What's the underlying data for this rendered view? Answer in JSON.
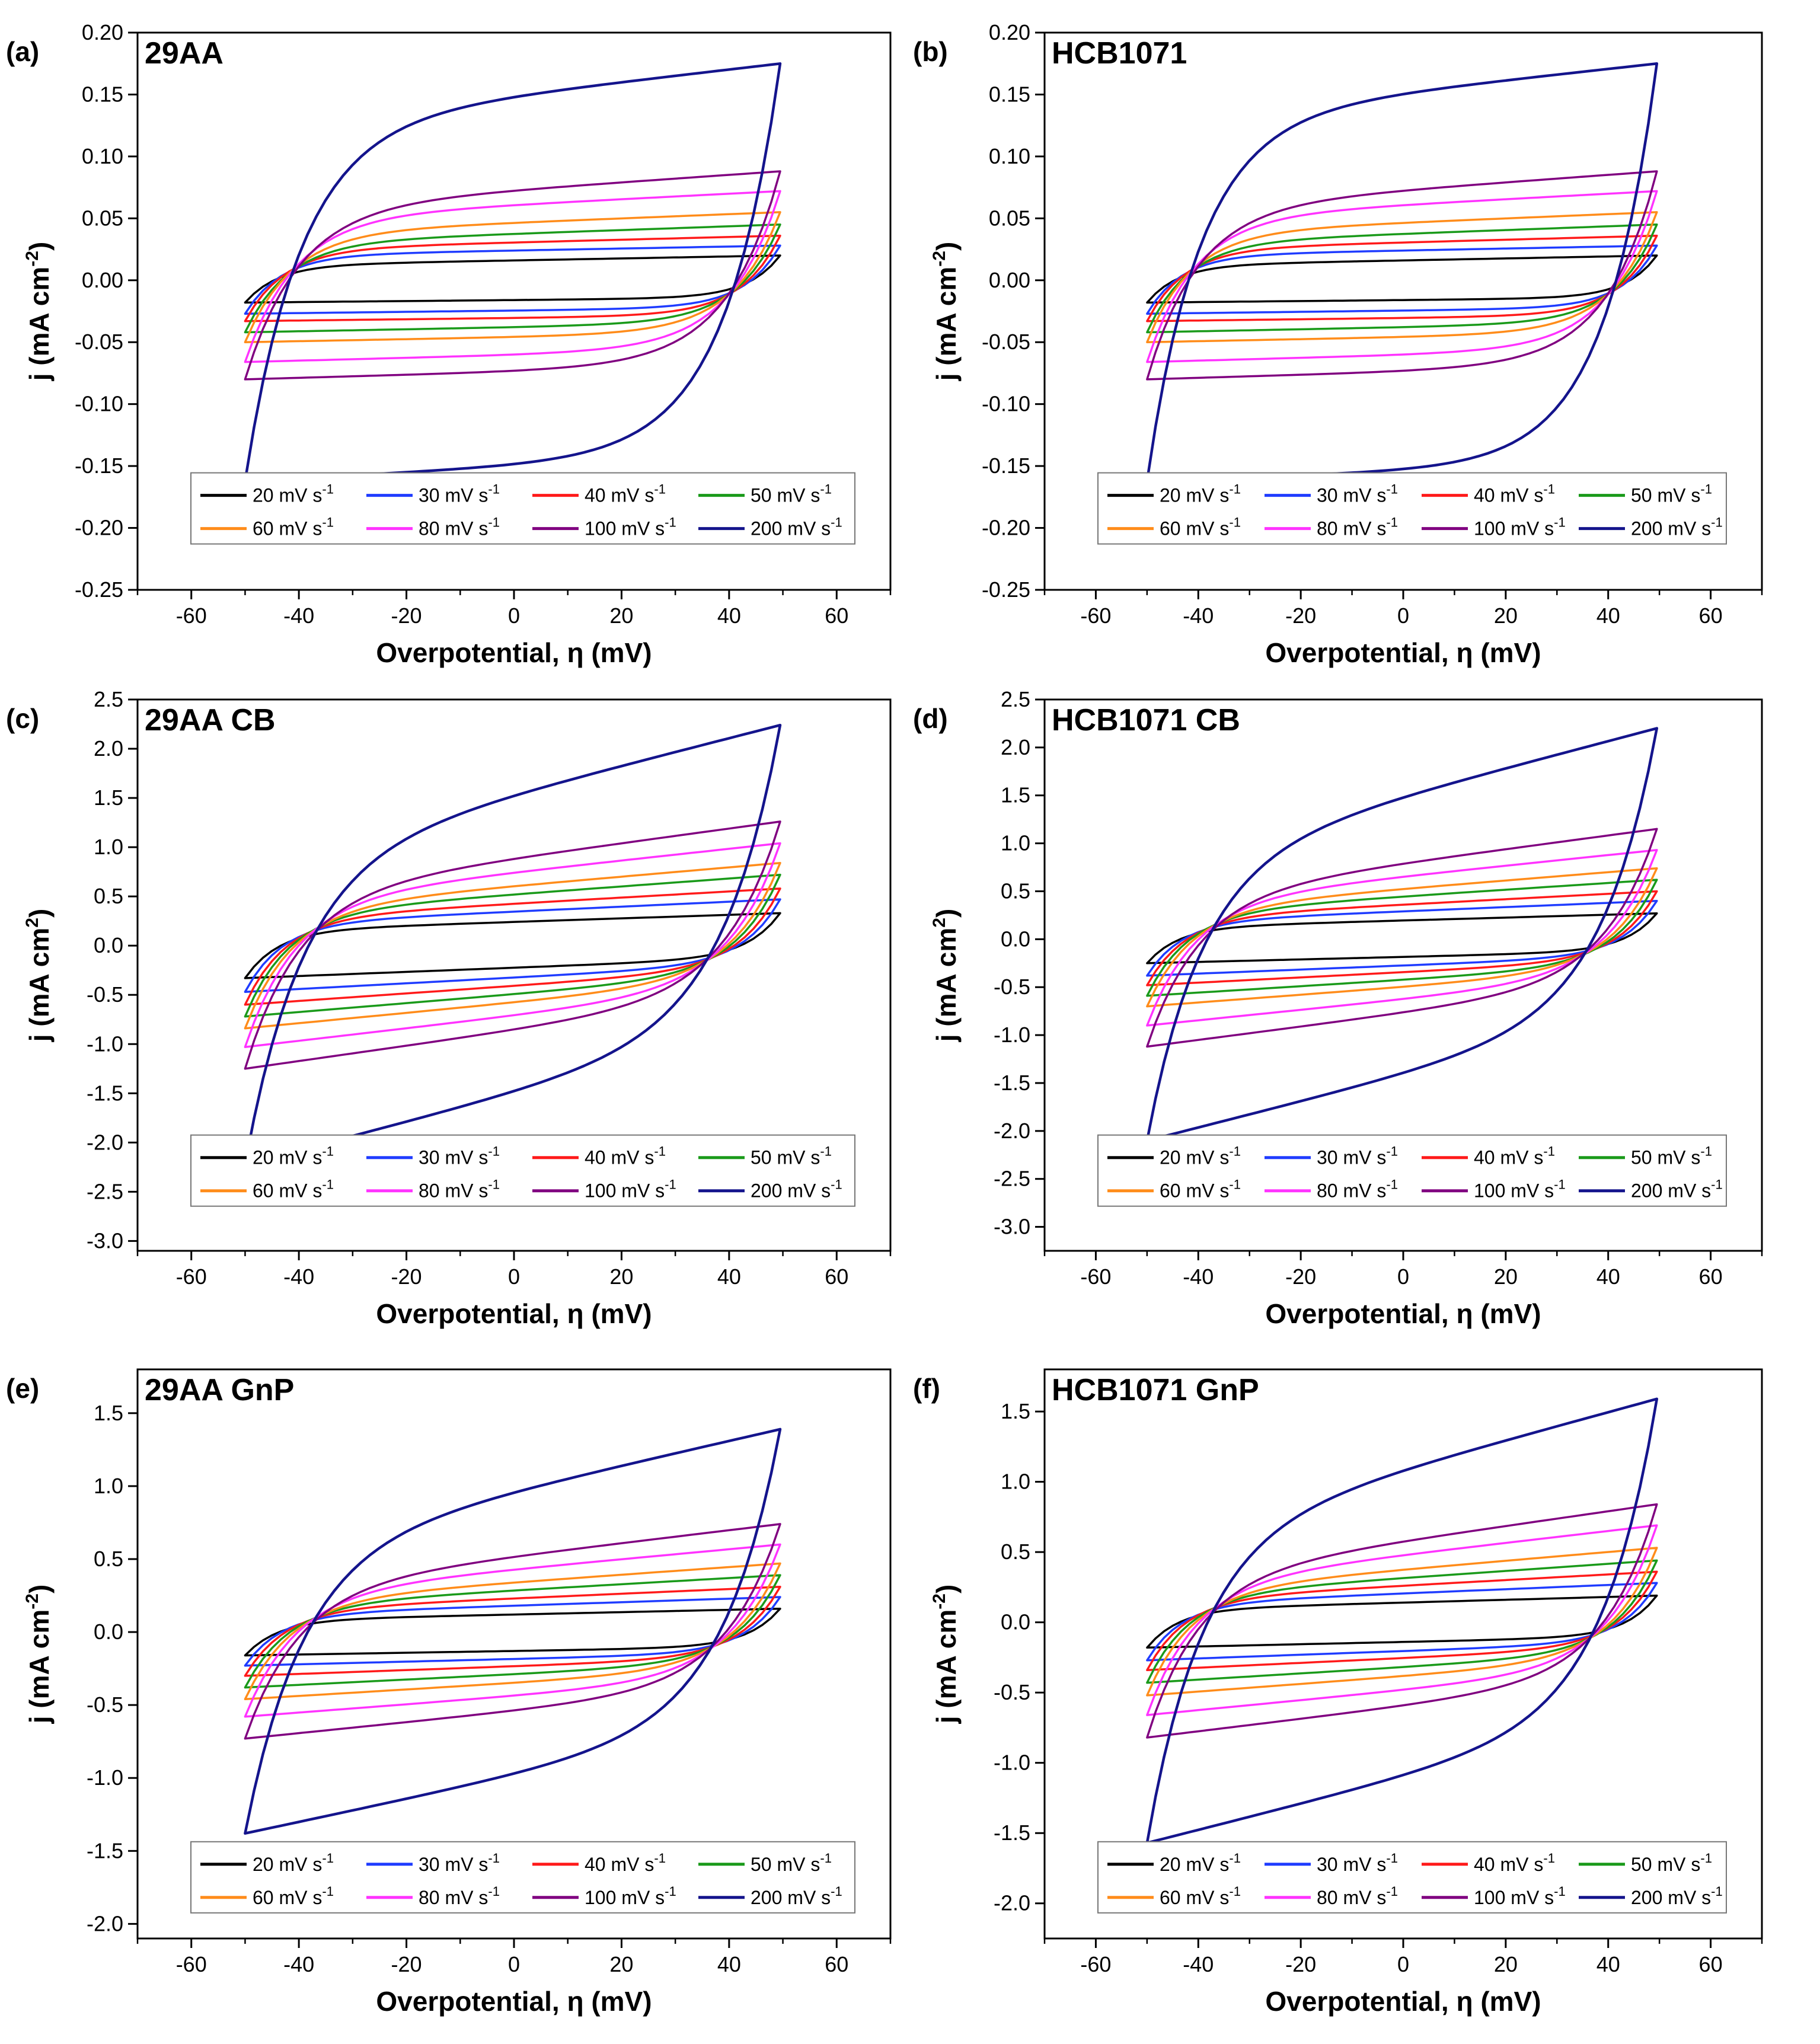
{
  "legend": {
    "rates": [
      {
        "label": "20 mV s",
        "color": "#000000"
      },
      {
        "label": "30 mV s",
        "color": "#1f3cff"
      },
      {
        "label": "40 mV s",
        "color": "#ff1a1a"
      },
      {
        "label": "50 mV s",
        "color": "#1a9a1a"
      },
      {
        "label": "60 mV s",
        "color": "#ff8c1a"
      },
      {
        "label": "80 mV s",
        "color": "#ff33ff"
      },
      {
        "label": "100 mV s",
        "color": "#800080"
      },
      {
        "label": "200 mV s",
        "color": "#14148c"
      }
    ],
    "superscript": "-1"
  },
  "chart_data": [
    {
      "type": "line",
      "panel": "(a)",
      "title": "29AA",
      "xlabel": "Overpotential, η (mV)",
      "ylabel": "j (mA cm",
      "ylabel_sup": "-2",
      "ylabel_end": ")",
      "xlim": [
        -70,
        70
      ],
      "ylim": [
        -0.25,
        0.2
      ],
      "xticks": [
        "-60",
        "-40",
        "-20",
        "0",
        "20",
        "40",
        "60"
      ],
      "yticks": [
        "0.20",
        "0.15",
        "0.10",
        "0.05",
        "0.00",
        "-0.05",
        "-0.10",
        "-0.15",
        "-0.20",
        "-0.25"
      ],
      "series": [
        {
          "name": "20 mV s-1",
          "anodic": [
            0.012,
            0.02
          ],
          "cathodic": [
            -0.018,
            -0.014
          ]
        },
        {
          "name": "30 mV s-1",
          "anodic": [
            0.02,
            0.028
          ],
          "cathodic": [
            -0.027,
            -0.022
          ]
        },
        {
          "name": "40 mV s-1",
          "anodic": [
            0.025,
            0.036
          ],
          "cathodic": [
            -0.033,
            -0.028
          ]
        },
        {
          "name": "50 mV s-1",
          "anodic": [
            0.03,
            0.045
          ],
          "cathodic": [
            -0.042,
            -0.034
          ]
        },
        {
          "name": "60 mV s-1",
          "anodic": [
            0.038,
            0.055
          ],
          "cathodic": [
            -0.05,
            -0.042
          ]
        },
        {
          "name": "80 mV s-1",
          "anodic": [
            0.05,
            0.072
          ],
          "cathodic": [
            -0.066,
            -0.055
          ]
        },
        {
          "name": "100 mV s-1",
          "anodic": [
            0.058,
            0.088
          ],
          "cathodic": [
            -0.08,
            -0.068
          ]
        },
        {
          "name": "200 mV s-1",
          "anodic": [
            0.125,
            0.175
          ],
          "cathodic": [
            -0.162,
            -0.14
          ]
        }
      ]
    },
    {
      "type": "line",
      "panel": "(b)",
      "title": "HCB1071",
      "xlabel": "Overpotential, η (mV)",
      "ylabel": "j (mA cm",
      "ylabel_sup": "-2",
      "ylabel_end": ")",
      "xlim": [
        -70,
        70
      ],
      "ylim": [
        -0.25,
        0.2
      ],
      "xticks": [
        "-60",
        "-40",
        "-20",
        "0",
        "20",
        "40",
        "60"
      ],
      "yticks": [
        "0.20",
        "0.15",
        "0.10",
        "0.05",
        "0.00",
        "-0.05",
        "-0.10",
        "-0.15",
        "-0.20",
        "-0.25"
      ],
      "series": [
        {
          "name": "20 mV s-1",
          "anodic": [
            0.012,
            0.02
          ],
          "cathodic": [
            -0.018,
            -0.014
          ]
        },
        {
          "name": "30 mV s-1",
          "anodic": [
            0.02,
            0.028
          ],
          "cathodic": [
            -0.027,
            -0.022
          ]
        },
        {
          "name": "40 mV s-1",
          "anodic": [
            0.025,
            0.036
          ],
          "cathodic": [
            -0.033,
            -0.028
          ]
        },
        {
          "name": "50 mV s-1",
          "anodic": [
            0.03,
            0.045
          ],
          "cathodic": [
            -0.042,
            -0.034
          ]
        },
        {
          "name": "60 mV s-1",
          "anodic": [
            0.038,
            0.055
          ],
          "cathodic": [
            -0.05,
            -0.042
          ]
        },
        {
          "name": "80 mV s-1",
          "anodic": [
            0.05,
            0.072
          ],
          "cathodic": [
            -0.066,
            -0.055
          ]
        },
        {
          "name": "100 mV s-1",
          "anodic": [
            0.058,
            0.088
          ],
          "cathodic": [
            -0.08,
            -0.068
          ]
        },
        {
          "name": "200 mV s-1",
          "anodic": [
            0.13,
            0.175
          ],
          "cathodic": [
            -0.162,
            -0.148
          ]
        }
      ]
    },
    {
      "type": "line",
      "panel": "(c)",
      "title": "29AA CB",
      "xlabel": "Overpotential, η (mV)",
      "ylabel": "j (mA cm",
      "ylabel_sup": "2",
      "ylabel_end": ")",
      "xlim": [
        -70,
        70
      ],
      "ylim": [
        -3.1,
        2.5
      ],
      "xticks": [
        "-60",
        "-40",
        "-20",
        "0",
        "20",
        "40",
        "60"
      ],
      "yticks": [
        "2.5",
        "2.0",
        "1.5",
        "1.0",
        "0.5",
        "0.0",
        "-0.5",
        "-1.0",
        "-1.5",
        "-2.0",
        "-2.5",
        "-3.0"
      ],
      "series": [
        {
          "name": "20 mV s-1",
          "anodic": [
            0.15,
            0.33
          ],
          "cathodic": [
            -0.33,
            -0.12
          ]
        },
        {
          "name": "30 mV s-1",
          "anodic": [
            0.22,
            0.47
          ],
          "cathodic": [
            -0.47,
            -0.18
          ]
        },
        {
          "name": "40 mV s-1",
          "anodic": [
            0.27,
            0.58
          ],
          "cathodic": [
            -0.6,
            -0.22
          ]
        },
        {
          "name": "50 mV s-1",
          "anodic": [
            0.32,
            0.72
          ],
          "cathodic": [
            -0.72,
            -0.27
          ]
        },
        {
          "name": "60 mV s-1",
          "anodic": [
            0.37,
            0.84
          ],
          "cathodic": [
            -0.84,
            -0.32
          ]
        },
        {
          "name": "80 mV s-1",
          "anodic": [
            0.45,
            1.04
          ],
          "cathodic": [
            -1.03,
            -0.4
          ]
        },
        {
          "name": "100 mV s-1",
          "anodic": [
            0.52,
            1.26
          ],
          "cathodic": [
            -1.25,
            -0.48
          ]
        },
        {
          "name": "200 mV s-1",
          "anodic": [
            0.85,
            2.24
          ],
          "cathodic": [
            -2.22,
            -0.8
          ]
        }
      ]
    },
    {
      "type": "line",
      "panel": "(d)",
      "title": "HCB1071 CB",
      "xlabel": "Overpotential, η (mV)",
      "ylabel": "j (mA cm",
      "ylabel_sup": "2",
      "ylabel_end": ")",
      "xlim": [
        -70,
        70
      ],
      "ylim": [
        -3.25,
        2.5
      ],
      "xticks": [
        "-60",
        "-40",
        "-20",
        "0",
        "20",
        "40",
        "60"
      ],
      "yticks": [
        "2.5",
        "2.0",
        "1.5",
        "1.0",
        "0.5",
        "0.0",
        "-0.5",
        "-1.0",
        "-1.5",
        "-2.0",
        "-2.5",
        "-3.0"
      ],
      "series": [
        {
          "name": "20 mV s-1",
          "anodic": [
            0.12,
            0.27
          ],
          "cathodic": [
            -0.25,
            -0.12
          ]
        },
        {
          "name": "30 mV s-1",
          "anodic": [
            0.18,
            0.4
          ],
          "cathodic": [
            -0.38,
            -0.17
          ]
        },
        {
          "name": "40 mV s-1",
          "anodic": [
            0.22,
            0.5
          ],
          "cathodic": [
            -0.48,
            -0.21
          ]
        },
        {
          "name": "50 mV s-1",
          "anodic": [
            0.27,
            0.62
          ],
          "cathodic": [
            -0.59,
            -0.26
          ]
        },
        {
          "name": "60 mV s-1",
          "anodic": [
            0.31,
            0.74
          ],
          "cathodic": [
            -0.7,
            -0.3
          ]
        },
        {
          "name": "80 mV s-1",
          "anodic": [
            0.38,
            0.93
          ],
          "cathodic": [
            -0.9,
            -0.36
          ]
        },
        {
          "name": "100 mV s-1",
          "anodic": [
            0.44,
            1.15
          ],
          "cathodic": [
            -1.12,
            -0.43
          ]
        },
        {
          "name": "200 mV s-1",
          "anodic": [
            0.8,
            2.2
          ],
          "cathodic": [
            -2.1,
            -0.75
          ]
        }
      ]
    },
    {
      "type": "line",
      "panel": "(e)",
      "title": "29AA GnP",
      "xlabel": "Overpotential, η (mV)",
      "ylabel": "j (mA cm",
      "ylabel_sup": "-2",
      "ylabel_end": ")",
      "xlim": [
        -70,
        70
      ],
      "ylim": [
        -2.1,
        1.8
      ],
      "xticks": [
        "-60",
        "-40",
        "-20",
        "0",
        "20",
        "40",
        "60"
      ],
      "yticks": [
        "1.5",
        "1.0",
        "0.5",
        "0.0",
        "-0.5",
        "-1.0",
        "-1.5",
        "-2.0"
      ],
      "series": [
        {
          "name": "20 mV s-1",
          "anodic": [
            0.08,
            0.16
          ],
          "cathodic": [
            -0.16,
            -0.1
          ]
        },
        {
          "name": "30 mV s-1",
          "anodic": [
            0.12,
            0.24
          ],
          "cathodic": [
            -0.23,
            -0.14
          ]
        },
        {
          "name": "40 mV s-1",
          "anodic": [
            0.15,
            0.31
          ],
          "cathodic": [
            -0.3,
            -0.17
          ]
        },
        {
          "name": "50 mV s-1",
          "anodic": [
            0.18,
            0.39
          ],
          "cathodic": [
            -0.38,
            -0.2
          ]
        },
        {
          "name": "60 mV s-1",
          "anodic": [
            0.21,
            0.47
          ],
          "cathodic": [
            -0.46,
            -0.24
          ]
        },
        {
          "name": "80 mV s-1",
          "anodic": [
            0.26,
            0.6
          ],
          "cathodic": [
            -0.58,
            -0.3
          ]
        },
        {
          "name": "100 mV s-1",
          "anodic": [
            0.3,
            0.74
          ],
          "cathodic": [
            -0.73,
            -0.36
          ]
        },
        {
          "name": "200 mV s-1",
          "anodic": [
            0.55,
            1.39
          ],
          "cathodic": [
            -1.38,
            -0.6
          ]
        }
      ]
    },
    {
      "type": "line",
      "panel": "(f)",
      "title": "HCB1071 GnP",
      "xlabel": "Overpotential, η (mV)",
      "ylabel": "j (mA cm",
      "ylabel_sup": "-2",
      "ylabel_end": ")",
      "xlim": [
        -70,
        70
      ],
      "ylim": [
        -2.25,
        1.8
      ],
      "xticks": [
        "-60",
        "-40",
        "-20",
        "0",
        "20",
        "40",
        "60"
      ],
      "yticks": [
        "1.5",
        "1.0",
        "0.5",
        "0.0",
        "-0.5",
        "-1.0",
        "-1.5",
        "-2.0"
      ],
      "series": [
        {
          "name": "20 mV s-1",
          "anodic": [
            0.09,
            0.19
          ],
          "cathodic": [
            -0.18,
            -0.1
          ]
        },
        {
          "name": "30 mV s-1",
          "anodic": [
            0.13,
            0.28
          ],
          "cathodic": [
            -0.27,
            -0.14
          ]
        },
        {
          "name": "40 mV s-1",
          "anodic": [
            0.16,
            0.36
          ],
          "cathodic": [
            -0.34,
            -0.17
          ]
        },
        {
          "name": "50 mV s-1",
          "anodic": [
            0.19,
            0.44
          ],
          "cathodic": [
            -0.43,
            -0.21
          ]
        },
        {
          "name": "60 mV s-1",
          "anodic": [
            0.22,
            0.53
          ],
          "cathodic": [
            -0.52,
            -0.25
          ]
        },
        {
          "name": "80 mV s-1",
          "anodic": [
            0.27,
            0.69
          ],
          "cathodic": [
            -0.66,
            -0.31
          ]
        },
        {
          "name": "100 mV s-1",
          "anodic": [
            0.32,
            0.84
          ],
          "cathodic": [
            -0.82,
            -0.38
          ]
        },
        {
          "name": "200 mV s-1",
          "anodic": [
            0.6,
            1.59
          ],
          "cathodic": [
            -1.57,
            -0.65
          ]
        }
      ]
    }
  ]
}
